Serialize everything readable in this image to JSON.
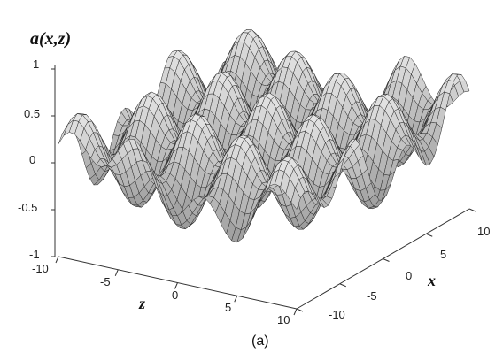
{
  "chart_data": {
    "type": "surface",
    "title": "",
    "zlabel": "a(x,z)",
    "xlabel": "x",
    "ylabel": "z",
    "caption": "(a)",
    "x_range": [
      -10,
      10
    ],
    "z_range": [
      -10,
      10
    ],
    "a_range": [
      -1,
      1
    ],
    "x_ticks": [
      "-10",
      "-5",
      "0",
      "5",
      "10"
    ],
    "z_ticks": [
      "-10",
      "-5",
      "0",
      "5",
      "10"
    ],
    "a_ticks": [
      "-1",
      "-0.5",
      "0",
      "0.5",
      "1"
    ],
    "grid": false,
    "mesh_color": "#2a2a2a",
    "surface_color": "#d8d8d8"
  }
}
